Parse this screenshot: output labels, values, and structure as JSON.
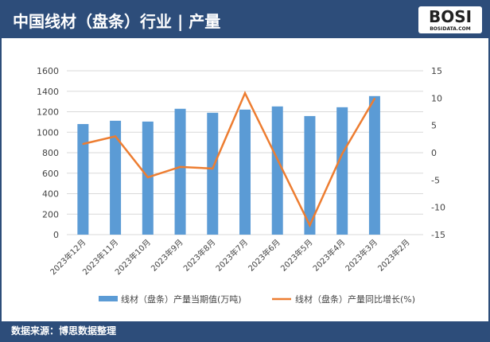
{
  "header": {
    "title": "中国线材（盘条）行业 | 产量",
    "logo_text": "BOSI",
    "logo_sub": "BOSIDATA.COM"
  },
  "footer": {
    "source": "数据来源：博思数据整理"
  },
  "colors": {
    "bar": "#5b9bd5",
    "line": "#ed7d31",
    "header": "#2d4d7a"
  },
  "chart_data": {
    "type": "bar+line",
    "categories": [
      "2023年12月",
      "2023年11月",
      "2023年10月",
      "2023年9月",
      "2023年8月",
      "2023年7月",
      "2023年6月",
      "2023年5月",
      "2023年4月",
      "2023年3月",
      "2023年2月"
    ],
    "series": [
      {
        "name": "线材（盘条）产量当期值(万吨)",
        "type": "bar",
        "axis": "left",
        "values": [
          1080,
          1112,
          1104,
          1229,
          1190,
          1221,
          1252,
          1158,
          1244,
          1353,
          null
        ]
      },
      {
        "name": "线材（盘条）产量同比增长(%)",
        "type": "line",
        "axis": "right",
        "values": [
          1.6,
          3.0,
          -4.5,
          -2.6,
          -2.9,
          10.9,
          -1.2,
          -13.3,
          -0.2,
          9.9,
          null
        ]
      }
    ],
    "y_left": {
      "range": [
        0,
        1600
      ],
      "ticks": [
        0,
        200,
        400,
        600,
        800,
        1000,
        1200,
        1400,
        1600
      ]
    },
    "y_right": {
      "range": [
        -15,
        15
      ],
      "ticks": [
        -15,
        -10,
        -5,
        0,
        5,
        10,
        15
      ]
    },
    "grid": true,
    "legend": "bottom"
  }
}
